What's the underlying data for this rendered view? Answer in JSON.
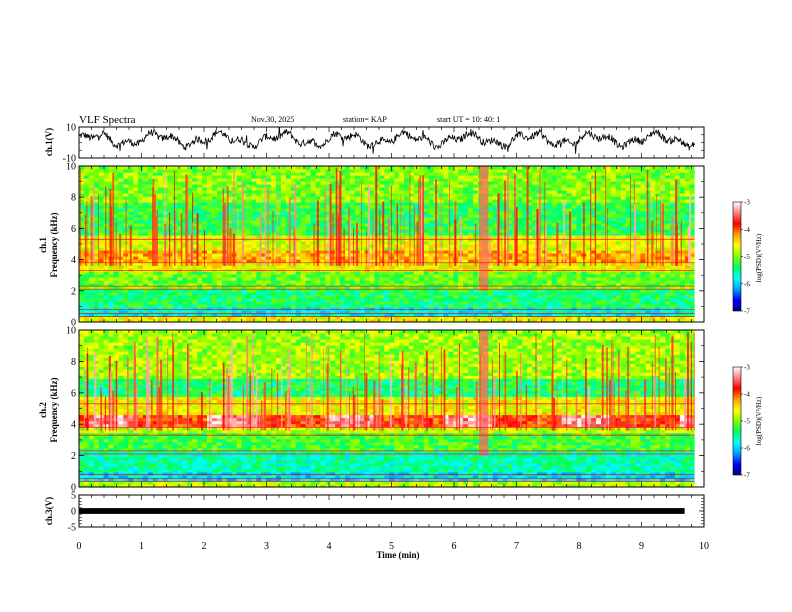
{
  "header": {
    "title": "VLF Spectra",
    "date": "Nov.30, 2025",
    "station": "station= KAP",
    "start": "start  UT  =   10: 40: 1"
  },
  "colors": {
    "waveform": "#000000",
    "background": "#ffffff",
    "colormap": [
      "#000080",
      "#0000ff",
      "#00a0ff",
      "#00ffff",
      "#00ff60",
      "#80ff00",
      "#ffff00",
      "#ffa000",
      "#ff0000",
      "#ff8080",
      "#ffffff"
    ]
  },
  "chart_data": [
    {
      "type": "line",
      "name": "ch1-waveform",
      "ylabel": "ch.1(V)",
      "ylim": [
        -10,
        10
      ],
      "yticks": [
        "10",
        "-10"
      ],
      "x_range_min": [
        0,
        9.85
      ],
      "description_mean_level": 2
    },
    {
      "type": "heatmap",
      "name": "ch1-spectrogram",
      "ylabel": "ch.1\nFrequency (kHz)",
      "ylabel_lines": [
        "ch.1",
        "Frequency (kHz)"
      ],
      "ylim": [
        0,
        10
      ],
      "yticks": [
        "0",
        "2",
        "4",
        "6",
        "8",
        "10"
      ],
      "colorbar": {
        "label": "log(PSD)(V²/Hz)",
        "range": [
          -7,
          -3
        ],
        "ticks": [
          "-3",
          "-4",
          "-5",
          "-6",
          "-7"
        ]
      },
      "bands_kHz": [
        {
          "from": 0,
          "to": 0.4,
          "level": -4.6
        },
        {
          "from": 0.4,
          "to": 1.0,
          "level": -5.8
        },
        {
          "from": 1.0,
          "to": 2.2,
          "level": -5.4
        },
        {
          "from": 2.2,
          "to": 3.2,
          "level": -5.1
        },
        {
          "from": 3.2,
          "to": 3.8,
          "level": -4.6
        },
        {
          "from": 3.8,
          "to": 4.6,
          "level": -4.3
        },
        {
          "from": 4.6,
          "to": 5.6,
          "level": -4.7
        },
        {
          "from": 5.6,
          "to": 7.6,
          "level": -5.3
        },
        {
          "from": 7.6,
          "to": 10,
          "level": -5.0
        }
      ]
    },
    {
      "type": "heatmap",
      "name": "ch2-spectrogram",
      "ylabel_lines": [
        "ch.2",
        "Frequency (kHz)"
      ],
      "ylim": [
        0,
        10
      ],
      "yticks": [
        "0",
        "2",
        "4",
        "6",
        "8",
        "10"
      ],
      "colorbar": {
        "label": "log(PSD)(V²/Hz)",
        "range": [
          -7,
          -3
        ],
        "ticks": [
          "-3",
          "-4",
          "-5",
          "-6",
          "-7"
        ]
      },
      "bands_kHz": [
        {
          "from": 0,
          "to": 0.4,
          "level": -4.8
        },
        {
          "from": 0.4,
          "to": 1.0,
          "level": -5.9
        },
        {
          "from": 1.0,
          "to": 2.3,
          "level": -5.6
        },
        {
          "from": 2.3,
          "to": 3.4,
          "level": -5.2
        },
        {
          "from": 3.4,
          "to": 3.9,
          "level": -4.8
        },
        {
          "from": 3.9,
          "to": 4.6,
          "level": -3.9
        },
        {
          "from": 4.6,
          "to": 5.8,
          "level": -4.6
        },
        {
          "from": 5.8,
          "to": 7.0,
          "level": -5.4
        },
        {
          "from": 7.0,
          "to": 10,
          "level": -4.9
        }
      ]
    },
    {
      "type": "line",
      "name": "ch3-waveform",
      "ylabel": "ch.3(V)",
      "ylim": [
        -5,
        5
      ],
      "yticks": [
        "5",
        "0",
        "-5"
      ],
      "level": 0
    }
  ],
  "xaxis": {
    "label": "Time (min)",
    "range": [
      0,
      10
    ],
    "ticks": [
      "0",
      "1",
      "2",
      "3",
      "4",
      "5",
      "6",
      "7",
      "8",
      "9",
      "10"
    ]
  }
}
